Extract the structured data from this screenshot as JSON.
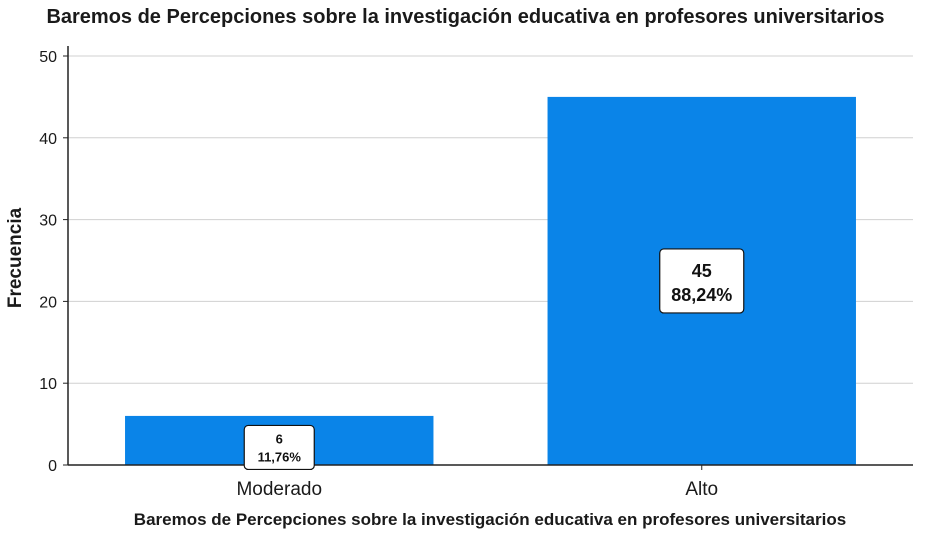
{
  "chart_data": {
    "type": "bar",
    "title": "Baremos de Percepciones sobre la investigación educativa en profesores universitarios",
    "xlabel": "Baremos de Percepciones sobre la investigación educativa en profesores universitarios",
    "ylabel": "Frecuencia",
    "categories": [
      "Moderado",
      "Alto"
    ],
    "values": [
      6,
      45
    ],
    "data_labels": [
      {
        "count": "6",
        "percent": "11,76%"
      },
      {
        "count": "45",
        "percent": "88,24%"
      }
    ],
    "ylim": [
      0,
      50
    ],
    "yticks": [
      0,
      10,
      20,
      30,
      40,
      50
    ],
    "grid": true,
    "bar_color": "#0a84e8",
    "legend": "none"
  }
}
